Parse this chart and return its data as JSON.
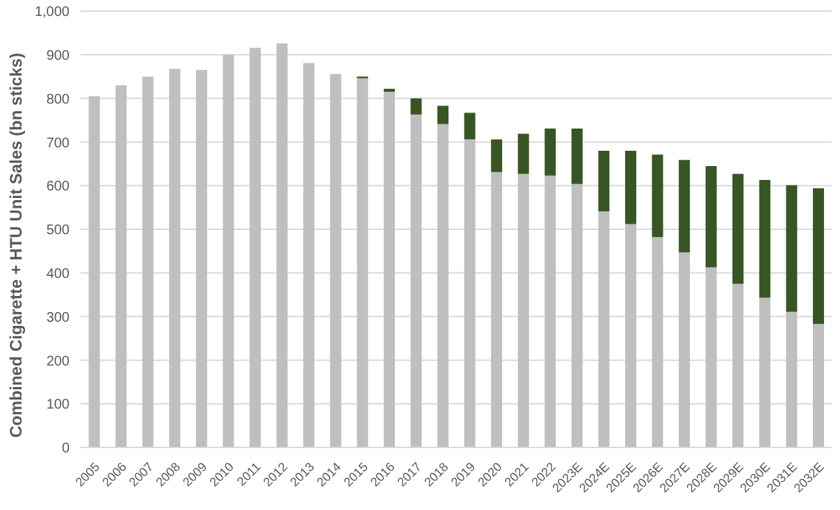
{
  "chart_data": {
    "type": "bar",
    "stacked": true,
    "ylabel": "Combined Cigarette + HTU Unit Sales (bn sticks)",
    "categories": [
      "2005",
      "2006",
      "2007",
      "2008",
      "2009",
      "2010",
      "2011",
      "2012",
      "2013",
      "2014",
      "2015",
      "2016",
      "2017",
      "2018",
      "2019",
      "2020",
      "2021",
      "2022",
      "2023E",
      "2024E",
      "2025E",
      "2026E",
      "2027E",
      "2028E",
      "2029E",
      "2030E",
      "2031E",
      "2032E"
    ],
    "series": [
      {
        "color": "#bfbfbf",
        "values": [
          805,
          830,
          850,
          868,
          865,
          900,
          916,
          926,
          881,
          856,
          846,
          815,
          763,
          741,
          706,
          631,
          627,
          623,
          604,
          541,
          512,
          482,
          447,
          413,
          375,
          343,
          311,
          283
        ]
      },
      {
        "color": "#375623",
        "values": [
          0,
          0,
          0,
          0,
          0,
          0,
          0,
          0,
          0,
          0,
          4,
          7,
          37,
          42,
          61,
          75,
          92,
          108,
          127,
          139,
          168,
          189,
          212,
          232,
          252,
          270,
          290,
          311
        ]
      }
    ],
    "ylim": [
      0,
      1000
    ],
    "yticks": [
      0,
      {
        "value": 100,
        "label": "100"
      },
      200,
      300,
      400,
      500,
      600,
      700,
      800,
      900,
      {
        "value": 1000,
        "label": "1,000"
      }
    ],
    "grid": "y",
    "legend": false
  }
}
